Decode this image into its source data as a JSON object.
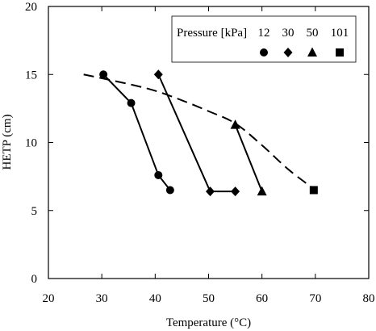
{
  "chart_data": {
    "type": "line",
    "xlabel": "Temperature (°C)",
    "ylabel": "HETP (cm)",
    "xlim": [
      20,
      80
    ],
    "ylim": [
      0,
      20
    ],
    "xticks": [
      20,
      30,
      40,
      50,
      60,
      70,
      80
    ],
    "yticks": [
      0,
      5,
      10,
      15,
      20
    ],
    "xtick_labels": [
      "20",
      "30",
      "40",
      "50",
      "60",
      "70",
      "80"
    ],
    "ytick_labels": [
      "0",
      "5",
      "10",
      "15",
      "20"
    ],
    "grid": false,
    "legend": {
      "title": "Pressure [kPa]",
      "placement": "top-right",
      "entries": [
        {
          "label": "12",
          "marker": "circle"
        },
        {
          "label": "30",
          "marker": "diamond"
        },
        {
          "label": "50",
          "marker": "triangle"
        },
        {
          "label": "101",
          "marker": "square"
        }
      ]
    },
    "series": [
      {
        "name": "12",
        "marker": "circle",
        "line": "solid",
        "x": [
          30.3,
          35.5,
          40.6,
          42.8
        ],
        "y": [
          15.0,
          12.9,
          7.6,
          6.5
        ]
      },
      {
        "name": "30",
        "marker": "diamond",
        "line": "solid",
        "x": [
          40.6,
          50.3,
          55.0
        ],
        "y": [
          15.0,
          6.4,
          6.4
        ]
      },
      {
        "name": "50",
        "marker": "triangle",
        "line": "solid",
        "x": [
          55.0,
          60.0
        ],
        "y": [
          11.3,
          6.4
        ]
      },
      {
        "name": "101",
        "marker": "square",
        "line": "none",
        "x": [
          69.7
        ],
        "y": [
          6.5
        ]
      }
    ],
    "trend_line": {
      "style": "dashed",
      "x": [
        26.6,
        35,
        40,
        45,
        50,
        55,
        60,
        65,
        69.7
      ],
      "y": [
        15.0,
        14.3,
        13.8,
        13.1,
        12.3,
        11.4,
        9.8,
        8.0,
        6.6
      ]
    },
    "colors": {
      "ink": "#000000",
      "background": "#ffffff"
    }
  }
}
